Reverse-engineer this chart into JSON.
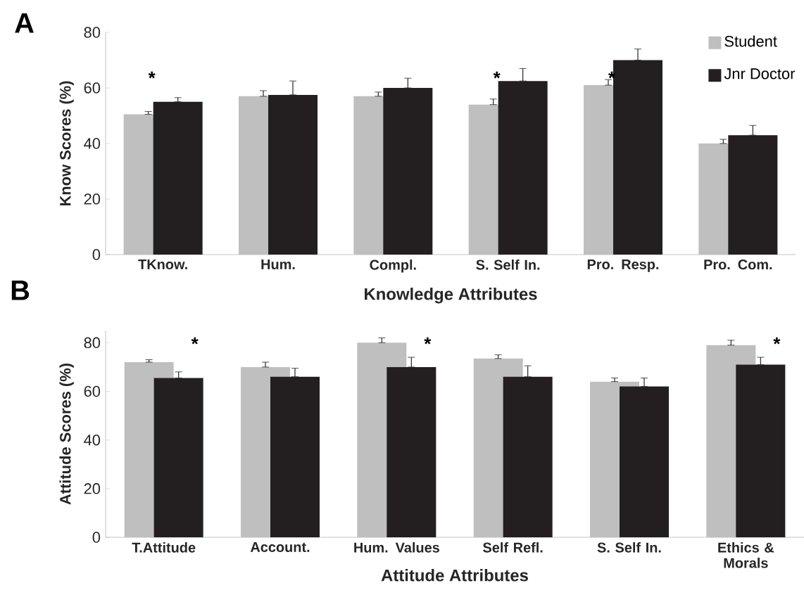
{
  "chart_data": [
    {
      "type": "bar",
      "title": "A",
      "ylabel": "Know Scores (%)",
      "xlabel": "Knowledge Attributes",
      "categories": [
        "TKnow.",
        "Hum.",
        "Compl.",
        "S. Self In.",
        "Pro. Resp.",
        "Pro. Com."
      ],
      "series": [
        {
          "name": "Student",
          "color": "#bfbfbf",
          "values": [
            50.5,
            57,
            57,
            54,
            61,
            40
          ],
          "errors": [
            [
              50.5,
              51.5
            ],
            [
              57,
              59
            ],
            [
              57,
              58.5
            ],
            [
              54,
              56
            ],
            [
              61,
              63
            ],
            [
              40,
              41.5
            ]
          ]
        },
        {
          "name": "Jnr Doctor",
          "color": "#231f20",
          "values": [
            55,
            57.5,
            60,
            62.5,
            70,
            43
          ],
          "errors": [
            [
              55,
              56.5
            ],
            [
              57.5,
              62.5
            ],
            [
              60,
              63.5
            ],
            [
              62.5,
              67
            ],
            [
              70,
              74
            ],
            [
              43,
              46.5
            ]
          ]
        }
      ],
      "ylim": [
        0,
        80
      ],
      "yticks": [
        0,
        20,
        40,
        60,
        80
      ],
      "legend": "top right",
      "annotations": [
        "*",
        "*",
        "*"
      ]
    },
    {
      "type": "bar",
      "title": "B",
      "ylabel": "Attitude Scores (%)",
      "xlabel": "Attitude Attributes",
      "categories": [
        "T.Attitude",
        "Account.",
        "Hum. Values",
        "Self Refl.",
        "S. Self In.",
        "Ethics & Morals"
      ],
      "series": [
        {
          "color": "#bfbfbf",
          "values": [
            72,
            70,
            80,
            73.5,
            64,
            79
          ],
          "errors": [
            [
              72,
              73
            ],
            [
              70,
              72
            ],
            [
              80,
              82
            ],
            [
              73.5,
              75
            ],
            [
              64,
              65.5
            ],
            [
              79,
              81
            ]
          ]
        },
        {
          "color": "#231f20",
          "values": [
            65.5,
            66,
            70,
            66,
            62,
            71
          ],
          "errors": [
            [
              65.5,
              68
            ],
            [
              66,
              69.5
            ],
            [
              70,
              74
            ],
            [
              66,
              70.5
            ],
            [
              62,
              65.5
            ],
            [
              71,
              74
            ]
          ]
        }
      ],
      "ylim": [
        0,
        85
      ],
      "yticks": [
        0,
        20,
        40,
        60,
        80
      ],
      "annotations": [
        "*",
        "*",
        "*"
      ]
    }
  ]
}
